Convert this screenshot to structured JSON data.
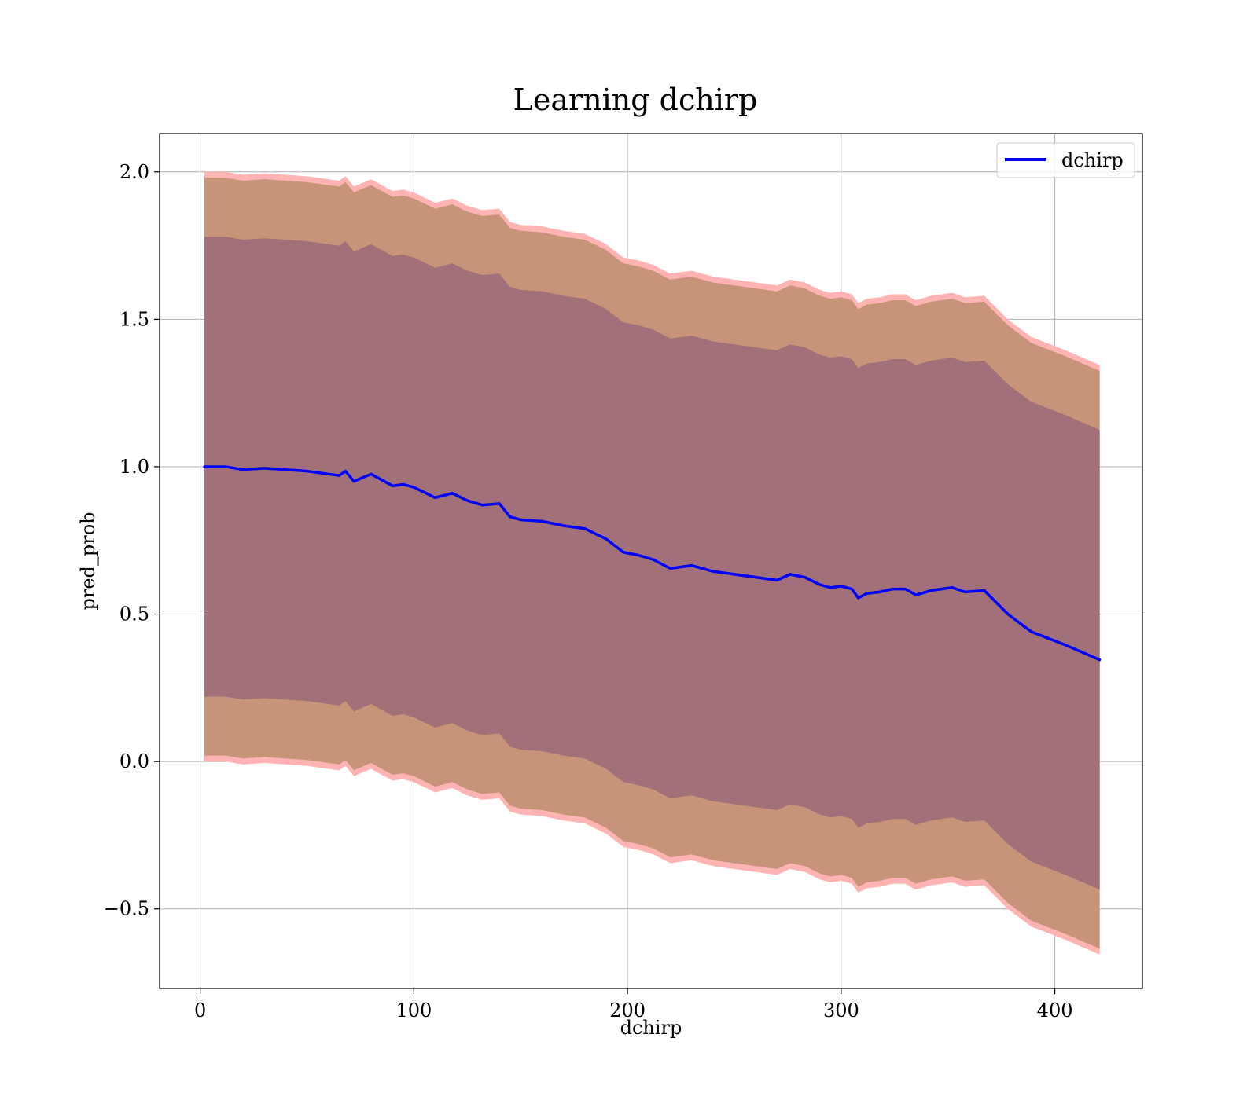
{
  "chart_data": {
    "type": "line",
    "title": "Learning dchirp",
    "xlabel": "dchirp",
    "ylabel": "pred_prob",
    "xlim": [
      -19,
      441
    ],
    "ylim": [
      -0.77,
      2.13
    ],
    "x_ticks": [
      0,
      100,
      200,
      300,
      400
    ],
    "x_tick_labels": [
      "0",
      "100",
      "200",
      "300",
      "400"
    ],
    "y_ticks": [
      -0.5,
      0.0,
      0.5,
      1.0,
      1.5,
      2.0
    ],
    "y_tick_labels": [
      "−0.5",
      "0.0",
      "0.5",
      "1.0",
      "1.5",
      "2.0"
    ],
    "grid": true,
    "legend": {
      "position": "top-right",
      "entries": [
        "dchirp"
      ]
    },
    "series": [
      {
        "name": "dchirp",
        "color": "#0000ff",
        "x": [
          2,
          12,
          20,
          30,
          40,
          50,
          60,
          65,
          68,
          72,
          75,
          80,
          85,
          90,
          95,
          100,
          110,
          118,
          125,
          132,
          140,
          145,
          150,
          160,
          170,
          180,
          190,
          198,
          205,
          212,
          220,
          230,
          240,
          250,
          260,
          265,
          270,
          276,
          283,
          290,
          295,
          300,
          305,
          308,
          312,
          318,
          324,
          330,
          335,
          342,
          352,
          358,
          367,
          378,
          389,
          405,
          421
        ],
        "values": [
          1.0,
          1.0,
          0.99,
          0.995,
          0.99,
          0.985,
          0.975,
          0.97,
          0.985,
          0.95,
          0.96,
          0.975,
          0.955,
          0.935,
          0.94,
          0.93,
          0.895,
          0.91,
          0.885,
          0.87,
          0.875,
          0.83,
          0.82,
          0.815,
          0.8,
          0.79,
          0.755,
          0.71,
          0.7,
          0.685,
          0.655,
          0.665,
          0.645,
          0.635,
          0.625,
          0.62,
          0.615,
          0.635,
          0.625,
          0.6,
          0.59,
          0.595,
          0.585,
          0.555,
          0.57,
          0.575,
          0.585,
          0.585,
          0.565,
          0.58,
          0.59,
          0.575,
          0.58,
          0.5,
          0.44,
          0.395,
          0.345
        ],
        "band_inner_halfwidth": 0.78,
        "band_outer_halfwidth": 0.98,
        "band_edge_halfwidth": 1.0
      }
    ],
    "colors": {
      "line": "#0000ff",
      "inner_band": "#a27078",
      "outer_band": "#c89479",
      "band_edge": "#ffb3b3"
    }
  }
}
